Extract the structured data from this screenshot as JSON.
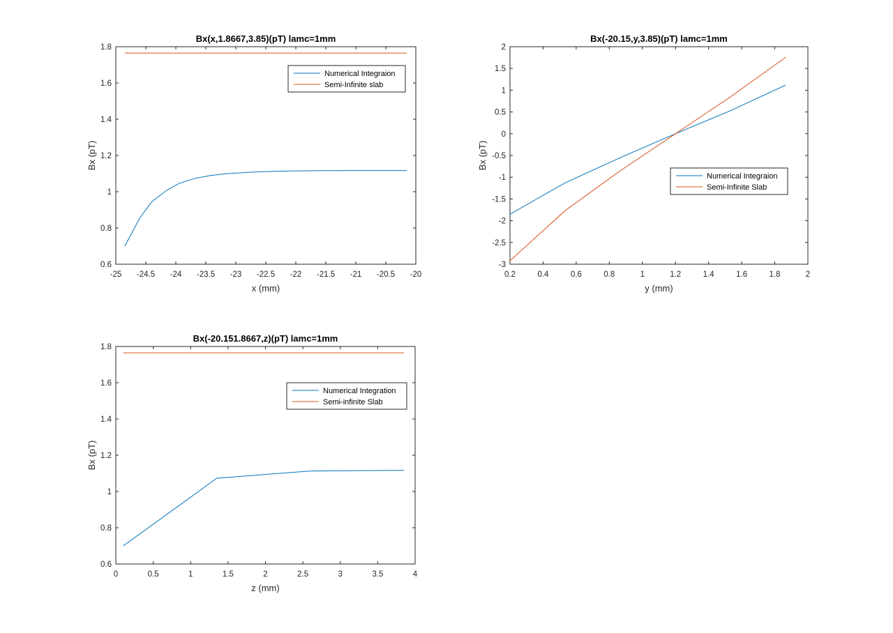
{
  "colors": {
    "numerical": "#0072BD",
    "slab": "#D95319",
    "axis": "#262626",
    "background": "#ffffff"
  },
  "chart_data": [
    {
      "type": "line",
      "title": "Bx(x,1.8667,3.85)(pT) lamc=1mm",
      "xlabel": "x (mm)",
      "ylabel": "Bx (pT)",
      "xlim": [
        -25,
        -20
      ],
      "ylim": [
        0.6,
        1.8
      ],
      "xticks": [
        -25,
        -24.5,
        -24,
        -23.5,
        -23,
        -22.5,
        -22,
        -21.5,
        -21,
        -20.5,
        -20
      ],
      "yticks": [
        0.6,
        0.8,
        1,
        1.2,
        1.4,
        1.6,
        1.8
      ],
      "grid": false,
      "legend_position": "top-right",
      "series": [
        {
          "name": "Numerical Integraion",
          "color": "#0072BD",
          "x": [
            -24.85,
            -24.6,
            -24.4,
            -24.15,
            -23.95,
            -23.7,
            -23.45,
            -23.2,
            -22.9,
            -22.6,
            -22.3,
            -22.0,
            -21.5,
            -21.0,
            -20.5,
            -20.15
          ],
          "y": [
            0.7,
            0.855,
            0.945,
            1.008,
            1.045,
            1.072,
            1.088,
            1.098,
            1.105,
            1.11,
            1.113,
            1.115,
            1.116,
            1.117,
            1.117,
            1.117
          ]
        },
        {
          "name": "Semi-Infinite slab",
          "color": "#D95319",
          "x": [
            -24.85,
            -20.15
          ],
          "y": [
            1.765,
            1.765
          ]
        }
      ]
    },
    {
      "type": "line",
      "title": "Bx(-20.15,y,3.85)(pT) lamc=1mm",
      "xlabel": "y (mm)",
      "ylabel": "Bx (pT)",
      "xlim": [
        0.2,
        2
      ],
      "ylim": [
        -3,
        2
      ],
      "xticks": [
        0.2,
        0.4,
        0.6,
        0.8,
        1,
        1.2,
        1.4,
        1.6,
        1.8,
        2
      ],
      "yticks": [
        -3,
        -2.5,
        -2,
        -1.5,
        -1,
        -0.5,
        0,
        0.5,
        1,
        1.5,
        2
      ],
      "grid": false,
      "legend_position": "middle-right",
      "series": [
        {
          "name": "Numerical Integraion",
          "color": "#0072BD",
          "x": [
            0.2,
            0.533,
            0.867,
            1.2,
            1.533,
            1.867
          ],
          "y": [
            -1.85,
            -1.13,
            -0.55,
            0.0,
            0.53,
            1.12
          ]
        },
        {
          "name": "Semi-Infinite Slab",
          "color": "#D95319",
          "x": [
            0.2,
            0.533,
            0.867,
            1.2,
            1.533,
            1.867
          ],
          "y": [
            -2.92,
            -1.77,
            -0.85,
            0.0,
            0.85,
            1.76
          ]
        }
      ]
    },
    {
      "type": "line",
      "title": "Bx(-20.151.8667,z)(pT) lamc=1mm",
      "xlabel": "z (mm)",
      "ylabel": "Bx (pT)",
      "xlim": [
        0,
        4
      ],
      "ylim": [
        0.6,
        1.8
      ],
      "xticks": [
        0,
        0.5,
        1,
        1.5,
        2,
        2.5,
        3,
        3.5,
        4
      ],
      "yticks": [
        0.6,
        0.8,
        1,
        1.2,
        1.4,
        1.6,
        1.8
      ],
      "grid": false,
      "legend_position": "top-right",
      "series": [
        {
          "name": "Numerical Integration",
          "color": "#0072BD",
          "x": [
            0.1,
            1.35,
            2.6,
            3.85
          ],
          "y": [
            0.7,
            1.073,
            1.113,
            1.117
          ]
        },
        {
          "name": "Semi-infinite Slab",
          "color": "#D95319",
          "x": [
            0.1,
            3.85
          ],
          "y": [
            1.765,
            1.765
          ]
        }
      ]
    }
  ]
}
